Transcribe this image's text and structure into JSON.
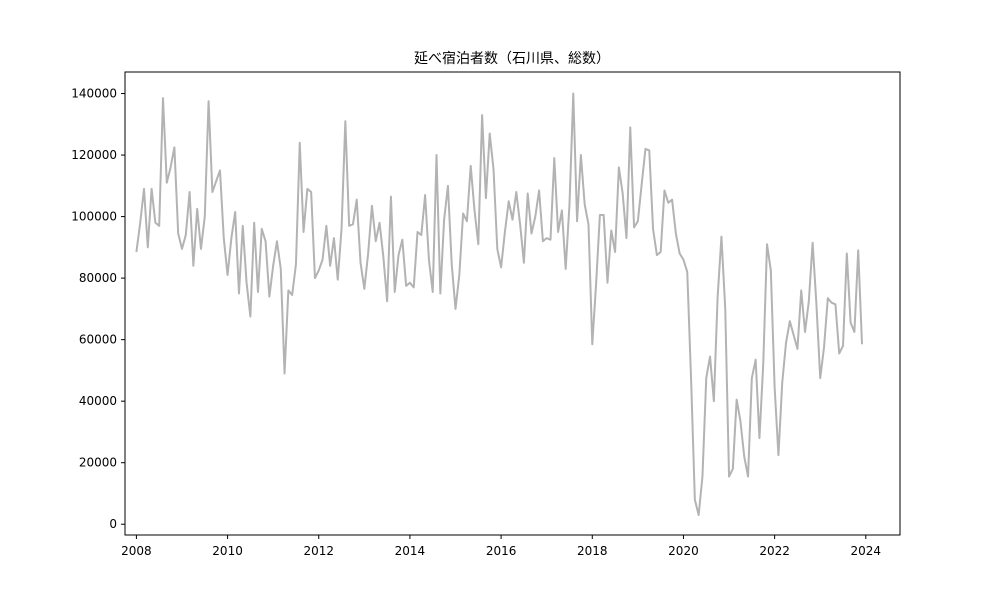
{
  "chart_data": {
    "type": "line",
    "title": "延べ宿泊者数（石川県、総数）",
    "xlabel": "",
    "ylabel": "",
    "x_start": "2008-01",
    "x_step": "month",
    "xlim": [
      2007.75,
      2024.75
    ],
    "ylim": [
      -3500,
      147000
    ],
    "x_ticks": [
      2008,
      2010,
      2012,
      2014,
      2016,
      2018,
      2020,
      2022,
      2024
    ],
    "y_ticks": [
      0,
      20000,
      40000,
      60000,
      80000,
      100000,
      120000,
      140000
    ],
    "grid": false,
    "legend": "none",
    "series": [
      {
        "color": "#b3b3b3",
        "values": [
          88500,
          98000,
          109000,
          90000,
          109000,
          98000,
          97000,
          138500,
          111000,
          116000,
          122500,
          94500,
          89500,
          94000,
          108000,
          84000,
          102500,
          89500,
          100000,
          137500,
          108000,
          111500,
          115000,
          93000,
          81000,
          93000,
          101500,
          75000,
          97000,
          78500,
          67500,
          98000,
          75500,
          96000,
          92000,
          74000,
          84000,
          92000,
          83000,
          49000,
          76000,
          74500,
          84500,
          124000,
          95000,
          109000,
          108000,
          80000,
          82500,
          86000,
          97000,
          84000,
          93000,
          79500,
          96000,
          131000,
          97000,
          97500,
          105500,
          85000,
          76500,
          88000,
          103500,
          92000,
          98000,
          87000,
          72500,
          106500,
          75500,
          87500,
          92500,
          77500,
          78500,
          77000,
          95000,
          94000,
          107000,
          86000,
          75500,
          120000,
          75000,
          99000,
          110000,
          84500,
          70000,
          81000,
          101000,
          98500,
          116500,
          102000,
          91000,
          133000,
          106000,
          127000,
          115500,
          89500,
          83500,
          95000,
          105000,
          99000,
          108000,
          97500,
          85000,
          107500,
          94500,
          100000,
          108500,
          92000,
          93000,
          92500,
          119000,
          95000,
          102000,
          83000,
          104000,
          140000,
          98500,
          120000,
          104000,
          97500,
          58500,
          78000,
          100500,
          100500,
          78500,
          95500,
          88500,
          116000,
          107500,
          93000,
          129000,
          96500,
          98500,
          110500,
          122000,
          121500,
          96000,
          87500,
          88500,
          108500,
          104500,
          105500,
          94500,
          88000,
          86000,
          82000,
          47500,
          8000,
          3000,
          15500,
          47500,
          54500,
          40000,
          74000,
          93500,
          70000,
          15500,
          18000,
          40500,
          33500,
          22000,
          15500,
          47500,
          53500,
          28000,
          52000,
          91000,
          82500,
          44500,
          22500,
          46000,
          59000,
          66000,
          61500,
          57000,
          76000,
          62500,
          72500,
          91500,
          71500,
          47500,
          57500,
          73500,
          72000,
          71500,
          55500,
          58000,
          88000,
          65500,
          62500,
          89000,
          58500
        ]
      }
    ]
  }
}
